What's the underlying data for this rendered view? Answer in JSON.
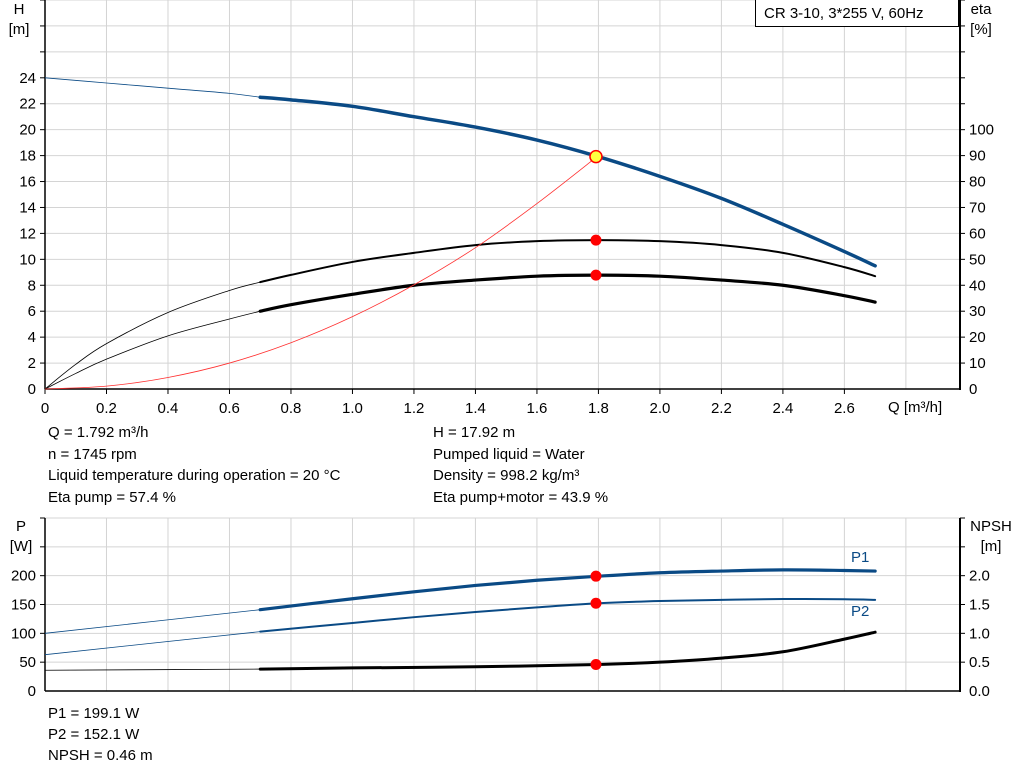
{
  "title": "CR 3-10, 3*255 V, 60Hz",
  "colors": {
    "head": "#0a4a85",
    "eta": "#000000",
    "system": "#ff3030",
    "power": "#0a4a85",
    "npsh": "#000000",
    "marker": "#ff0000",
    "duty_point_fill": "#ffff40",
    "grid": "#d4d4d4"
  },
  "info_top": {
    "left": [
      "Q = 1.792 m³/h",
      "n = 1745 rpm",
      "Liquid temperature during operation = 20 °C",
      "Eta pump = 57.4 %"
    ],
    "right": [
      "H = 17.92 m",
      "Pumped liquid = Water",
      "Density = 998.2 kg/m³",
      "Eta pump+motor = 43.9 %"
    ]
  },
  "info_bottom": [
    "P1 = 199.1 W",
    "P2 = 152.1 W",
    "NPSH = 0.46 m"
  ],
  "chart_data": [
    {
      "type": "line",
      "xlabel": "Q [m³/h]",
      "ylabel": "H\n[m]",
      "y2label": "eta\n[%]",
      "xlim": [
        0,
        2.976
      ],
      "ylim": [
        0,
        30
      ],
      "y2lim": [
        0,
        150
      ],
      "grid": true,
      "xticks": [
        "0",
        "0.2",
        "0.4",
        "0.6",
        "0.8",
        "1.0",
        "1.2",
        "1.4",
        "1.6",
        "1.8",
        "2.0",
        "2.2",
        "2.4",
        "2.6"
      ],
      "yticks": [
        "0",
        "2",
        "4",
        "6",
        "8",
        "10",
        "12",
        "14",
        "16",
        "18",
        "20",
        "22",
        "24"
      ],
      "y2ticks": [
        "0",
        "10",
        "20",
        "30",
        "40",
        "50",
        "60",
        "70",
        "80",
        "90",
        "100"
      ],
      "duty_point": {
        "q": 1.792,
        "h": 17.92
      },
      "series": [
        {
          "id": "head",
          "axis": "left",
          "x": [
            0,
            0.2,
            0.4,
            0.6,
            0.7,
            0.8,
            1.0,
            1.2,
            1.4,
            1.6,
            1.8,
            2.0,
            2.2,
            2.4,
            2.6,
            2.7
          ],
          "y": [
            24,
            23.6,
            23.2,
            22.8,
            22.5,
            22.3,
            21.8,
            21.0,
            20.2,
            19.2,
            17.92,
            16.4,
            14.7,
            12.7,
            10.6,
            9.5
          ],
          "marker": null
        },
        {
          "id": "eta-pump",
          "axis": "right",
          "x": [
            0,
            0.1,
            0.2,
            0.4,
            0.6,
            0.7,
            0.8,
            1.0,
            1.2,
            1.4,
            1.6,
            1.8,
            2.0,
            2.2,
            2.4,
            2.6,
            2.7
          ],
          "y": [
            0,
            9.5,
            17.5,
            29.5,
            38,
            41.2,
            44,
            49,
            52.5,
            55.5,
            57,
            57.4,
            57,
            55.5,
            52.5,
            47,
            43.5
          ],
          "marker": 57.4
        },
        {
          "id": "eta-pump-motor",
          "axis": "right",
          "x": [
            0,
            0.1,
            0.2,
            0.4,
            0.6,
            0.7,
            0.8,
            1.0,
            1.2,
            1.4,
            1.6,
            1.8,
            2.0,
            2.2,
            2.4,
            2.6,
            2.7
          ],
          "y": [
            0,
            6,
            11.5,
            20.5,
            27,
            30,
            32.5,
            36.5,
            40,
            42,
            43.5,
            43.9,
            43.5,
            42,
            40,
            36,
            33.5
          ],
          "marker": 43.9
        },
        {
          "id": "system-curve",
          "axis": "left",
          "x": [
            0,
            0.2,
            0.4,
            0.6,
            0.8,
            1.0,
            1.2,
            1.4,
            1.6,
            1.8
          ],
          "y": [
            0,
            0.22,
            0.89,
            2.0,
            3.57,
            5.58,
            8.03,
            10.9,
            14.3,
            18.0
          ],
          "marker": null
        }
      ]
    },
    {
      "type": "line",
      "ylabel": "P\n[W]",
      "y2label": "NPSH\n[m]",
      "xlim": [
        0,
        2.976
      ],
      "ylim": [
        0,
        300
      ],
      "y2lim": [
        0,
        3
      ],
      "grid": true,
      "yticks": [
        "0",
        "50",
        "100",
        "150",
        "200"
      ],
      "y2ticks": [
        "0.0",
        "0.5",
        "1.0",
        "1.5",
        "2.0"
      ],
      "series": [
        {
          "id": "P1",
          "name": "P1",
          "axis": "left",
          "x": [
            0,
            0.7,
            1.0,
            1.2,
            1.4,
            1.6,
            1.8,
            2.0,
            2.2,
            2.4,
            2.6,
            2.7
          ],
          "y": [
            100,
            141,
            160,
            172,
            183,
            192,
            199.1,
            205,
            208,
            210,
            209,
            208
          ],
          "marker": 199.1
        },
        {
          "id": "P2",
          "name": "P2",
          "axis": "left",
          "x": [
            0,
            0.7,
            1.0,
            1.2,
            1.4,
            1.6,
            1.8,
            2.0,
            2.2,
            2.4,
            2.6,
            2.7
          ],
          "y": [
            63,
            103,
            118,
            128,
            137,
            145,
            152.1,
            156,
            158,
            159.5,
            159,
            158
          ],
          "marker": 152.1
        },
        {
          "id": "NPSH",
          "axis": "right",
          "x": [
            0,
            0.7,
            1.0,
            1.4,
            1.8,
            2.0,
            2.2,
            2.4,
            2.6,
            2.7
          ],
          "y": [
            0.36,
            0.38,
            0.4,
            0.42,
            0.46,
            0.5,
            0.57,
            0.68,
            0.9,
            1.02
          ],
          "marker": 0.46
        }
      ]
    }
  ]
}
